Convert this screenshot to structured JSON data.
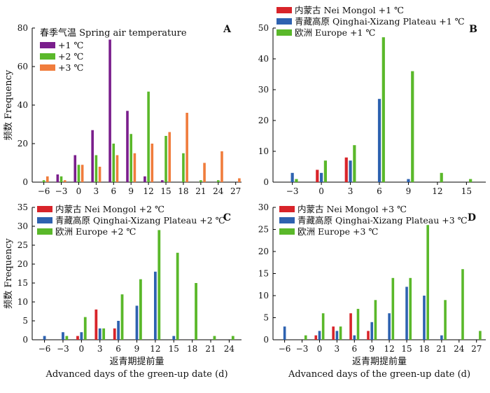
{
  "colors": {
    "purple": "#7a1e8c",
    "green": "#5ab82a",
    "orange": "#f07c3c",
    "red": "#d8242a",
    "blue": "#2e62b0",
    "axis": "#000000"
  },
  "chart_data": [
    {
      "id": "A",
      "type": "bar",
      "panel_label": "A",
      "legend_title": "春季气温 Spring air temperature",
      "legend_position": "top-left",
      "ylabel": "频数 Frequency",
      "xlabel": "",
      "xlabel2": "",
      "ylim": [
        0,
        80
      ],
      "yticks": [
        0,
        20,
        40,
        60,
        80
      ],
      "xticks": [
        -6,
        -3,
        0,
        3,
        6,
        9,
        12,
        15,
        18,
        21,
        24,
        27
      ],
      "xlim": [
        -8,
        28
      ],
      "grid": false,
      "series": [
        {
          "name": "+1 ℃",
          "color": "purple",
          "x": [
            -6,
            -3,
            0,
            3,
            6,
            9,
            12,
            15
          ],
          "values": [
            0,
            4,
            14,
            27,
            74,
            37,
            3,
            1
          ]
        },
        {
          "name": "+2 ℃",
          "color": "green",
          "x": [
            -6,
            -3,
            0,
            3,
            6,
            9,
            12,
            15,
            18,
            21,
            24
          ],
          "values": [
            1,
            3,
            9,
            14,
            20,
            25,
            47,
            24,
            15,
            1,
            1
          ]
        },
        {
          "name": "+3 ℃",
          "color": "orange",
          "x": [
            -6,
            -3,
            0,
            3,
            6,
            9,
            12,
            15,
            18,
            21,
            24,
            27
          ],
          "values": [
            3,
            1,
            9,
            8,
            14,
            15,
            20,
            26,
            36,
            10,
            16,
            2
          ]
        }
      ]
    },
    {
      "id": "B",
      "type": "bar",
      "panel_label": "B",
      "legend_title": "",
      "legend_position": "top-left",
      "ylabel": "",
      "xlabel": "",
      "xlabel2": "",
      "ylim": [
        0,
        50
      ],
      "yticks": [
        0,
        10,
        20,
        30,
        40,
        50
      ],
      "xticks": [
        -3,
        0,
        3,
        6,
        9,
        12,
        15
      ],
      "xlim": [
        -5,
        17
      ],
      "grid": false,
      "series": [
        {
          "name": "内蒙古 Nei Mongol +1 ℃",
          "color": "red",
          "x": [
            -3,
            0,
            3,
            6,
            9,
            12,
            15
          ],
          "values": [
            0,
            4,
            8,
            0,
            0,
            0,
            0
          ]
        },
        {
          "name": "青藏高原 Qinghai-Xizang Plateau +1 ℃",
          "color": "blue",
          "x": [
            -3,
            0,
            3,
            6,
            9,
            12,
            15
          ],
          "values": [
            3,
            3,
            7,
            27,
            1,
            0,
            0
          ]
        },
        {
          "name": "欧洲 Europe +1 ℃",
          "color": "green",
          "x": [
            -3,
            0,
            3,
            6,
            9,
            12,
            15
          ],
          "values": [
            1,
            7,
            12,
            47,
            36,
            3,
            1
          ]
        }
      ]
    },
    {
      "id": "C",
      "type": "bar",
      "panel_label": "C",
      "legend_title": "",
      "legend_position": "top-left",
      "ylabel": "频数 Frequency",
      "xlabel": "返青期提前量",
      "xlabel2": "Advanced days of the green-up date (d)",
      "ylim": [
        0,
        35
      ],
      "yticks": [
        0,
        5,
        10,
        15,
        20,
        25,
        30,
        35
      ],
      "xticks": [
        -6,
        -3,
        0,
        3,
        6,
        9,
        12,
        15,
        18,
        21,
        24
      ],
      "xlim": [
        -8,
        26
      ],
      "grid": false,
      "series": [
        {
          "name": "内蒙古 Nei Mongol +2 ℃",
          "color": "red",
          "x": [
            -6,
            -3,
            0,
            3,
            6,
            9,
            12,
            15,
            18,
            21,
            24
          ],
          "values": [
            0,
            0,
            1,
            8,
            3,
            0,
            0,
            0,
            0,
            0,
            0
          ]
        },
        {
          "name": "青藏高原 Qinghai-Xizang Plateau +2 ℃",
          "color": "blue",
          "x": [
            -6,
            -3,
            0,
            3,
            6,
            9,
            12,
            15,
            18,
            21,
            24
          ],
          "values": [
            1,
            2,
            2,
            3,
            5,
            9,
            18,
            1,
            0,
            0,
            0
          ]
        },
        {
          "name": "欧洲 Europe +2 ℃",
          "color": "green",
          "x": [
            -6,
            -3,
            0,
            3,
            6,
            9,
            12,
            15,
            18,
            21,
            24
          ],
          "values": [
            0,
            1,
            6,
            3,
            12,
            16,
            29,
            23,
            15,
            1,
            1
          ]
        }
      ]
    },
    {
      "id": "D",
      "type": "bar",
      "panel_label": "D",
      "legend_title": "",
      "legend_position": "top-left",
      "ylabel": "",
      "xlabel": "返青期提前量",
      "xlabel2": "Advanced days of the green-up date (d)",
      "ylim": [
        0,
        30
      ],
      "yticks": [
        0,
        5,
        10,
        15,
        20,
        25,
        30
      ],
      "xticks": [
        -6,
        -3,
        0,
        3,
        6,
        9,
        12,
        15,
        18,
        21,
        24,
        27
      ],
      "xlim": [
        -8,
        28.6
      ],
      "grid": false,
      "series": [
        {
          "name": "内蒙古 Nei Mongol +3 ℃",
          "color": "red",
          "x": [
            -6,
            -3,
            0,
            3,
            6,
            9,
            12,
            15,
            18,
            21,
            24,
            27
          ],
          "values": [
            0,
            0,
            1,
            3,
            6,
            2,
            0,
            0,
            0,
            0,
            0,
            0
          ]
        },
        {
          "name": "青藏高原 Qinghai-Xizang Plateau +3 ℃",
          "color": "blue",
          "x": [
            -6,
            -3,
            0,
            3,
            6,
            9,
            12,
            15,
            18,
            21,
            24,
            27
          ],
          "values": [
            3,
            0,
            2,
            2,
            1,
            4,
            6,
            12,
            10,
            1,
            0,
            0
          ]
        },
        {
          "name": "欧洲 Europe +3 ℃",
          "color": "green",
          "x": [
            -6,
            -3,
            0,
            3,
            6,
            9,
            12,
            15,
            18,
            21,
            24,
            27
          ],
          "values": [
            0,
            1,
            6,
            3,
            7,
            9,
            14,
            14,
            26,
            9,
            16,
            2
          ]
        }
      ]
    }
  ]
}
